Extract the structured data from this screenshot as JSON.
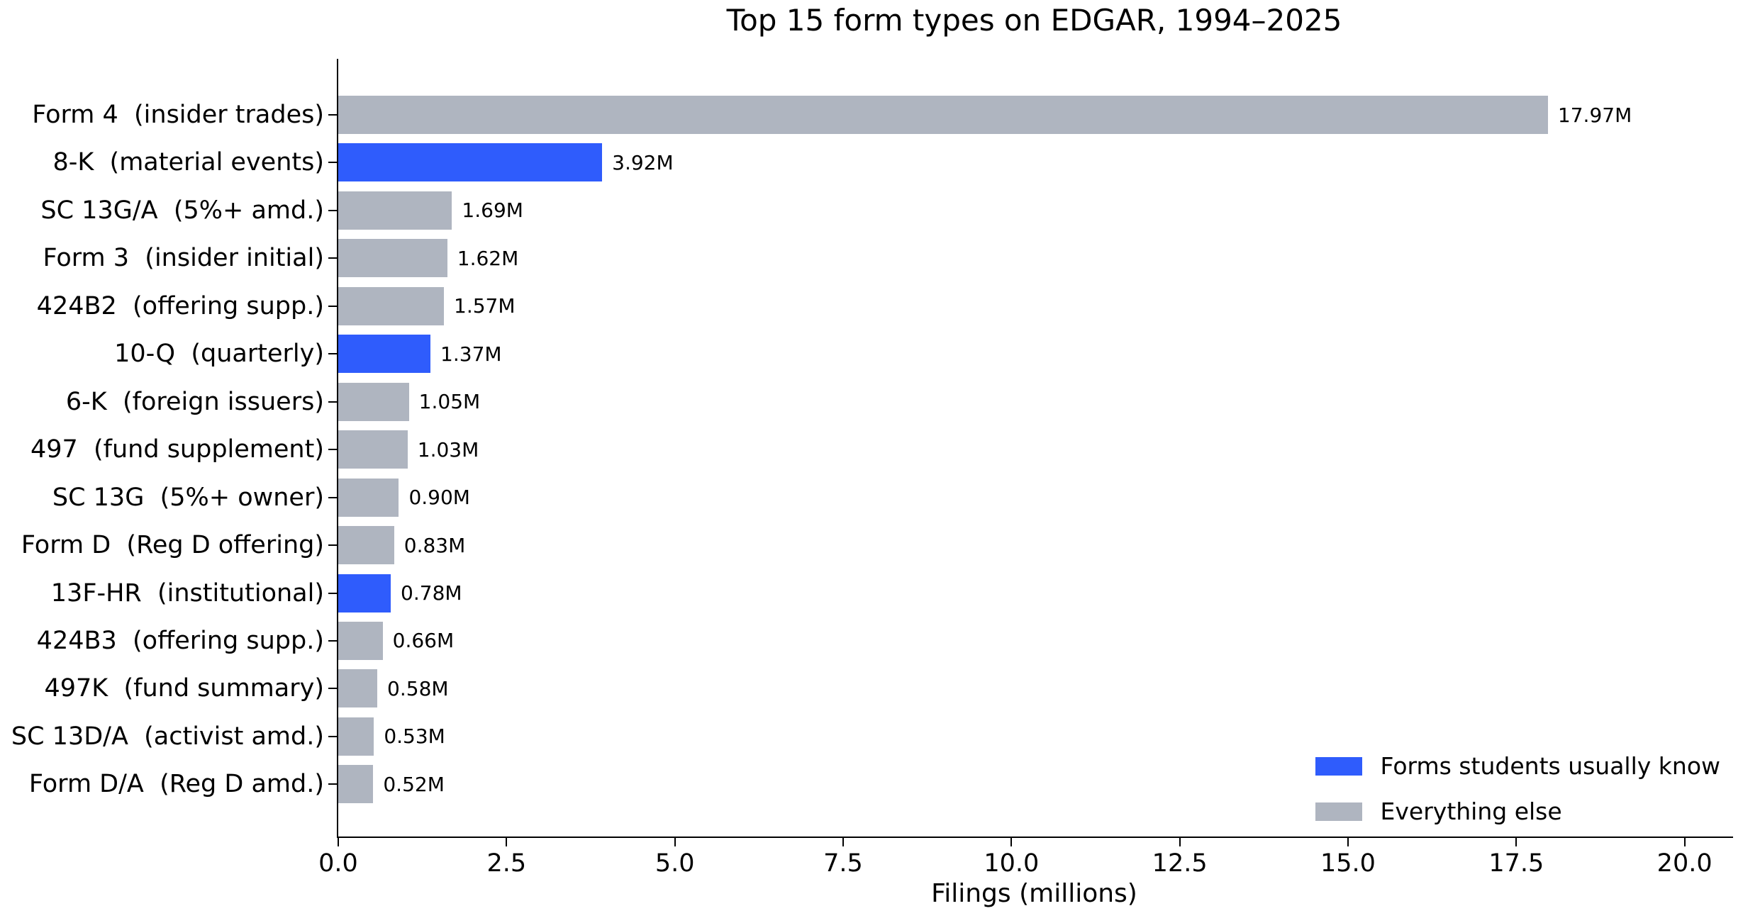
{
  "title": "Top 15 form types on EDGAR, 1994–2025",
  "chart_data": {
    "type": "bar",
    "orientation": "horizontal",
    "title": "Top 15 form types on EDGAR, 1994–2025",
    "xlabel": "Filings (millions)",
    "ylabel": "",
    "xlim": [
      0,
      20.72
    ],
    "grid": false,
    "categories": [
      "Form 4  (insider trades)",
      "8-K  (material events)",
      "SC 13G/A  (5%+ amd.)",
      "Form 3  (insider initial)",
      "424B2  (offering supp.)",
      "10-Q  (quarterly)",
      "6-K  (foreign issuers)",
      "497  (fund supplement)",
      "SC 13G  (5%+ owner)",
      "Form D  (Reg D offering)",
      "13F-HR  (institutional)",
      "424B3  (offering supp.)",
      "497K  (fund summary)",
      "SC 13D/A  (activist amd.)",
      "Form D/A  (Reg D amd.)"
    ],
    "values": [
      17.97,
      3.92,
      1.69,
      1.62,
      1.57,
      1.37,
      1.05,
      1.03,
      0.9,
      0.83,
      0.78,
      0.66,
      0.58,
      0.53,
      0.52
    ],
    "value_labels": [
      "17.97M",
      "3.92M",
      "1.69M",
      "1.62M",
      "1.57M",
      "1.37M",
      "1.05M",
      "1.03M",
      "0.90M",
      "0.83M",
      "0.78M",
      "0.66M",
      "0.58M",
      "0.53M",
      "0.52M"
    ],
    "highlighted": [
      false,
      true,
      false,
      false,
      false,
      true,
      false,
      false,
      false,
      false,
      true,
      false,
      false,
      false,
      false
    ],
    "xticks": [
      "0.0",
      "2.5",
      "5.0",
      "7.5",
      "10.0",
      "12.5",
      "15.0",
      "17.5",
      "20.0"
    ],
    "colors": {
      "highlight": "#2F5CFC",
      "other": "#AFB5C0",
      "axis": "#000000",
      "background": "#FFFFFF"
    },
    "legend": {
      "position": "lower right",
      "items": [
        {
          "label": "Forms students usually know",
          "color_key": "highlight"
        },
        {
          "label": "Everything else",
          "color_key": "other"
        }
      ]
    }
  }
}
